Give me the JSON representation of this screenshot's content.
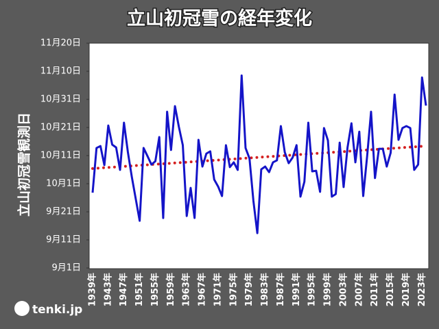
{
  "chart_data": {
    "type": "line",
    "title": "立山初冠雪の経年変化",
    "y_label": "立山初冠雪観測日",
    "categories": [
      "1939年",
      null,
      null,
      null,
      "1943年",
      null,
      null,
      null,
      "1947年",
      null,
      null,
      null,
      "1951年",
      null,
      null,
      null,
      "1955年",
      null,
      null,
      null,
      "1959年",
      null,
      null,
      null,
      "1963年",
      null,
      null,
      null,
      "1967年",
      null,
      null,
      null,
      "1971年",
      null,
      null,
      null,
      "1975年",
      null,
      null,
      null,
      "1979年",
      null,
      null,
      null,
      "1983年",
      null,
      null,
      null,
      "1987年",
      null,
      null,
      null,
      "1991年",
      null,
      null,
      null,
      "1995年",
      null,
      null,
      null,
      "1999年",
      null,
      null,
      null,
      "2003年",
      null,
      null,
      null,
      "2007年",
      null,
      null,
      null,
      "2011年",
      null,
      null,
      null,
      "2015年",
      null,
      null,
      null,
      "2019年",
      null,
      null,
      null,
      "2023年",
      null
    ],
    "series": [
      {
        "color": "#1414c8",
        "values": [
          26.8,
          42.7,
          43.4,
          36.6,
          50.7,
          43.9,
          42.9,
          34.9,
          51.7,
          41.2,
          32.4,
          24.6,
          16.8,
          42.7,
          39.8,
          36.8,
          38.0,
          46.6,
          17.8,
          55.6,
          42.0,
          57.6,
          50.2,
          43.7,
          18.5,
          28.5,
          17.8,
          45.6,
          36.1,
          40.7,
          41.5,
          31.5,
          29.0,
          25.6,
          43.7,
          35.9,
          37.6,
          34.9,
          68.5,
          42.7,
          39.0,
          23.9,
          12.4,
          35.1,
          36.1,
          34.1,
          37.6,
          38.3,
          50.5,
          41.2,
          37.3,
          39.3,
          43.7,
          25.4,
          30.7,
          51.7,
          34.4,
          34.6,
          27.1,
          49.8,
          45.4,
          25.4,
          26.3,
          44.6,
          28.8,
          42.9,
          51.5,
          37.6,
          48.5,
          25.6,
          39.8,
          55.6,
          32.0,
          42.4,
          42.4,
          36.1,
          41.0,
          61.7,
          45.6,
          49.8,
          50.5,
          49.8,
          34.9,
          36.8,
          67.8,
          57.8
        ]
      }
    ],
    "trendline": {
      "color": "#d42020",
      "values": [
        35.4,
        43.4
      ]
    },
    "ylim": [
      0,
      80
    ],
    "yticks": [
      {
        "value": 0,
        "label": "9月1日"
      },
      {
        "value": 10,
        "label": "9月11日"
      },
      {
        "value": 20,
        "label": "9月21日"
      },
      {
        "value": 30,
        "label": "10月1日"
      },
      {
        "value": 40,
        "label": "10月11日"
      },
      {
        "value": 50,
        "label": "10月21日"
      },
      {
        "value": 60,
        "label": "10月31日"
      },
      {
        "value": 70,
        "label": "11月10日"
      },
      {
        "value": 80,
        "label": "11月20日"
      }
    ],
    "logo": "tenki.jp"
  }
}
